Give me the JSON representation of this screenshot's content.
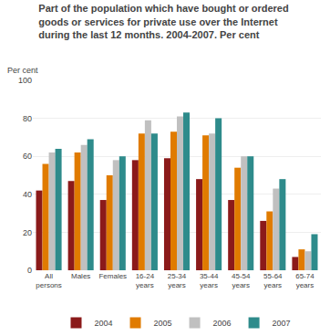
{
  "chart_data": {
    "type": "bar",
    "title": "Part of the population which have bought or ordered\ngoods or services for private use over the Internet\nduring the last 12 months. 2004-2007. Per cent",
    "ylabel": "Per cent",
    "categories": [
      "All\npersons",
      "Males",
      "Females",
      "16-24\nyears",
      "25-34\nyears",
      "35-44\nyears",
      "45-54\nyears",
      "55-64\nyears",
      "65-74\nyears"
    ],
    "series": [
      {
        "name": "2004",
        "color": "#8B1A1A",
        "values": [
          42,
          47,
          37,
          58,
          59,
          48,
          37,
          26,
          7
        ]
      },
      {
        "name": "2005",
        "color": "#E07B00",
        "values": [
          56,
          62,
          50,
          72,
          73,
          71,
          54,
          31,
          11
        ]
      },
      {
        "name": "2006",
        "color": "#C0C0C0",
        "values": [
          62,
          66,
          58,
          79,
          81,
          72,
          60,
          43,
          10
        ]
      },
      {
        "name": "2007",
        "color": "#2E8B8B",
        "values": [
          64,
          69,
          60,
          72,
          83,
          80,
          60,
          48,
          19
        ]
      }
    ],
    "ylim": [
      0,
      100
    ],
    "yticks": [
      0,
      20,
      40,
      60,
      80,
      100
    ],
    "grid": true,
    "legend": "bottom"
  }
}
